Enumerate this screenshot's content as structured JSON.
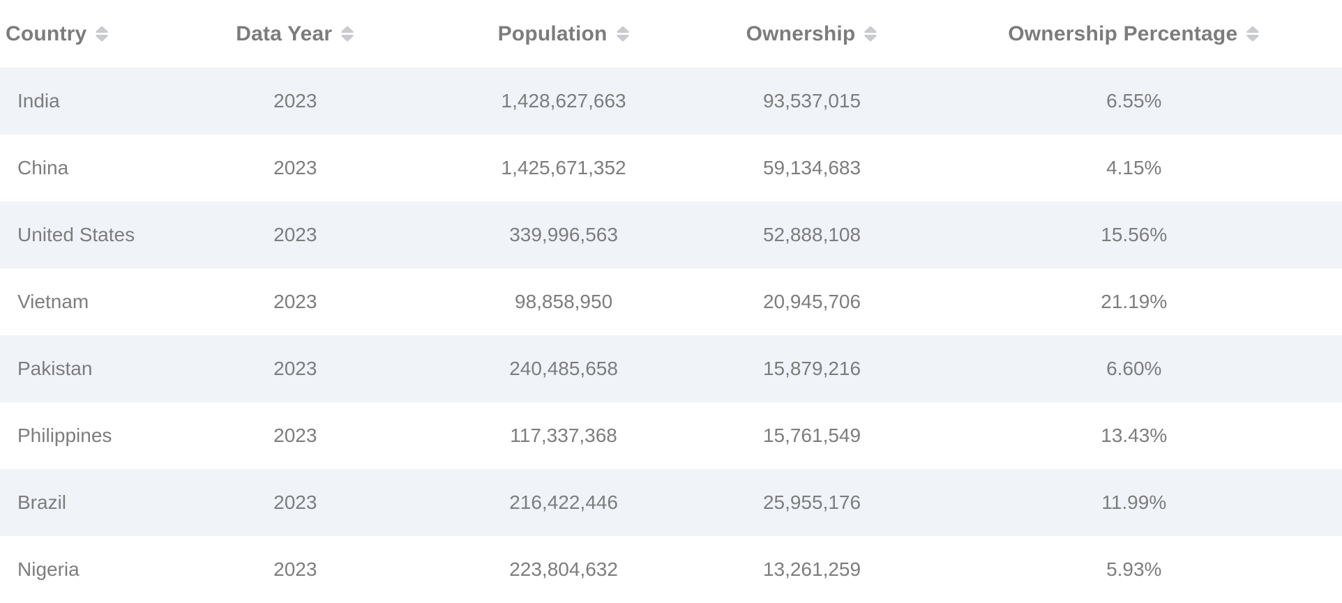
{
  "table": {
    "columns": [
      {
        "key": "country",
        "label": "Country"
      },
      {
        "key": "data_year",
        "label": "Data Year"
      },
      {
        "key": "population",
        "label": "Population"
      },
      {
        "key": "ownership",
        "label": "Ownership"
      },
      {
        "key": "ownership_percentage",
        "label": "Ownership Percentage"
      }
    ],
    "rows": [
      {
        "country": "India",
        "data_year": "2023",
        "population": "1,428,627,663",
        "ownership": "93,537,015",
        "ownership_percentage": "6.55%"
      },
      {
        "country": "China",
        "data_year": "2023",
        "population": "1,425,671,352",
        "ownership": "59,134,683",
        "ownership_percentage": "4.15%"
      },
      {
        "country": "United States",
        "data_year": "2023",
        "population": "339,996,563",
        "ownership": "52,888,108",
        "ownership_percentage": "15.56%"
      },
      {
        "country": "Vietnam",
        "data_year": "2023",
        "population": "98,858,950",
        "ownership": "20,945,706",
        "ownership_percentage": "21.19%"
      },
      {
        "country": "Pakistan",
        "data_year": "2023",
        "population": "240,485,658",
        "ownership": "15,879,216",
        "ownership_percentage": "6.60%"
      },
      {
        "country": "Philippines",
        "data_year": "2023",
        "population": "117,337,368",
        "ownership": "15,761,549",
        "ownership_percentage": "13.43%"
      },
      {
        "country": "Brazil",
        "data_year": "2023",
        "population": "216,422,446",
        "ownership": "25,955,176",
        "ownership_percentage": "11.99%"
      },
      {
        "country": "Nigeria",
        "data_year": "2023",
        "population": "223,804,632",
        "ownership": "13,261,259",
        "ownership_percentage": "5.93%"
      }
    ]
  },
  "colors": {
    "stripe": "#f0f3f8",
    "header_text": "#7c7c7c",
    "cell_text": "#7d7d7d",
    "sort_icon": "#c9cbce",
    "background": "#ffffff"
  },
  "icons": {
    "sort": "sort-arrows-icon"
  }
}
